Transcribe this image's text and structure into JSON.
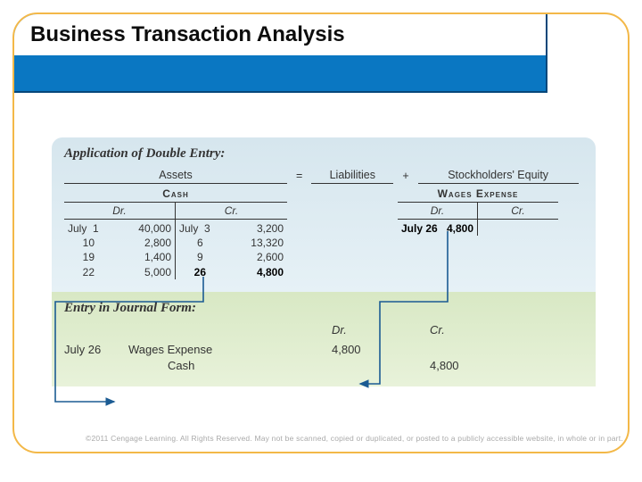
{
  "header": {
    "title": "Business Transaction Analysis"
  },
  "upper": {
    "title": "Application of Double Entry:",
    "equation": {
      "assets": "Assets",
      "eq": "=",
      "liab": "Liabilities",
      "plus": "+",
      "se": "Stockholders' Equity"
    },
    "accounts": {
      "cash": {
        "name": "Cash",
        "dr_label": "Dr.",
        "cr_label": "Cr.",
        "debits": [
          {
            "date": "July  1",
            "amount": "40,000"
          },
          {
            "date": "     10",
            "amount": "2,800"
          },
          {
            "date": "     19",
            "amount": "1,400"
          },
          {
            "date": "     22",
            "amount": "5,000"
          }
        ],
        "credits": [
          {
            "date": "July  3",
            "amount": "3,200"
          },
          {
            "date": "      6",
            "amount": "13,320"
          },
          {
            "date": "      9",
            "amount": "2,600"
          },
          {
            "date": "     26",
            "amount": "4,800",
            "highlight": true
          }
        ]
      },
      "wages_expense": {
        "name": "Wages Expense",
        "dr_label": "Dr.",
        "cr_label": "Cr.",
        "debits": [
          {
            "date": "July 26",
            "amount": "4,800",
            "highlight": true
          }
        ],
        "credits": []
      }
    }
  },
  "lower": {
    "title": "Entry in Journal Form:",
    "head": {
      "dr": "Dr.",
      "cr": "Cr."
    },
    "lines": [
      {
        "date": "July 26",
        "account": "Wages Expense",
        "dr": "4,800",
        "cr": ""
      },
      {
        "date": "",
        "account": "Cash",
        "dr": "",
        "cr": "4,800",
        "indent": true
      }
    ]
  },
  "footer": "©2011 Cengage Learning. All Rights Reserved. May not be scanned, copied or duplicated, or posted to a publicly accessible website, in whole or in part.",
  "colors": {
    "header_band": "#0a77c2",
    "card_border": "#f3b848",
    "upper_bg_top": "#d6e6ee",
    "lower_bg_top": "#d8e8c4",
    "connector": "#1b5b93"
  }
}
